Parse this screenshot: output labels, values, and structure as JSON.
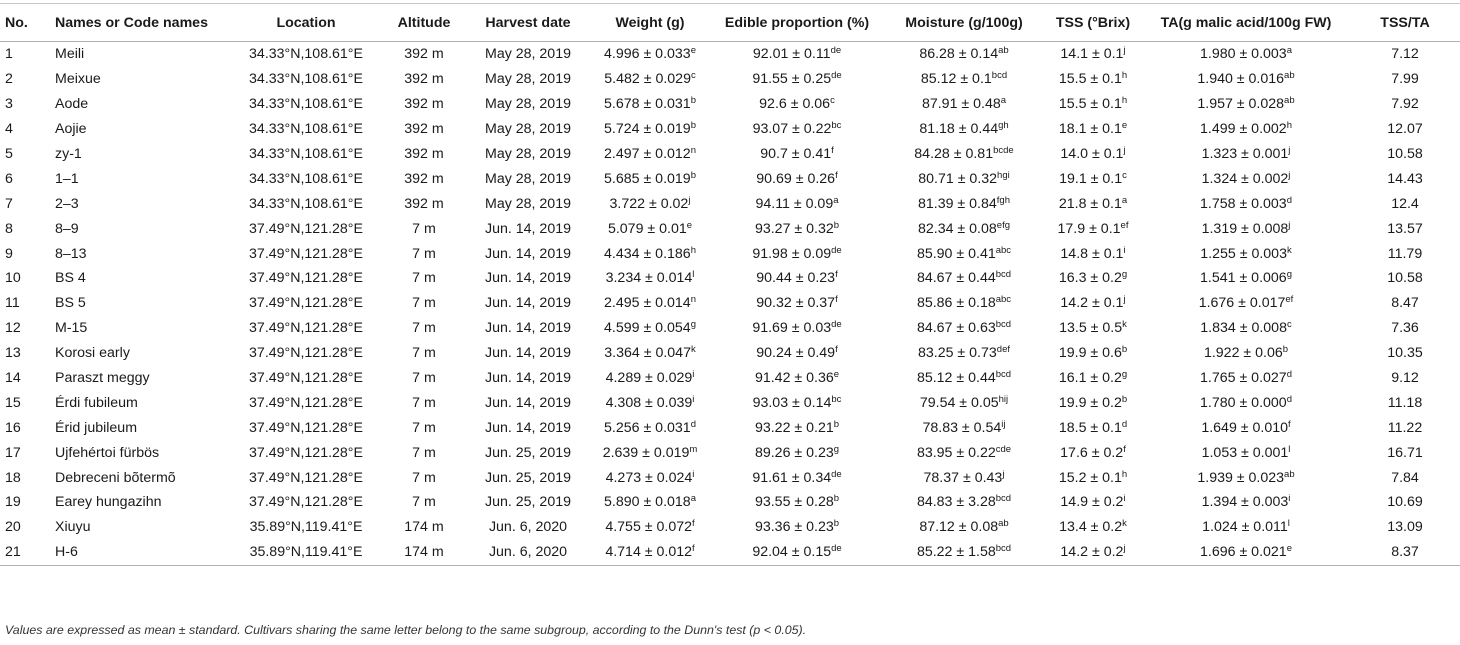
{
  "table": {
    "headers": [
      "No.",
      "Names or Code names",
      "Location",
      "Altitude",
      "Harvest date",
      "Weight (g)",
      "Edible proportion (%)",
      "Moisture (g/100g)",
      "TSS (°Brix)",
      "TA(g malic acid/100g FW)",
      "TSS/TA"
    ],
    "rows": [
      {
        "no": "1",
        "name": "Meili",
        "location": "34.33°N,108.61°E",
        "altitude": "392 m",
        "date": "May 28, 2019",
        "weight": {
          "v": "4.996 ± 0.033",
          "s": "e"
        },
        "edible": {
          "v": "92.01 ± 0.11",
          "s": "de"
        },
        "moisture": {
          "v": "86.28 ± 0.14",
          "s": "ab"
        },
        "tss": {
          "v": "14.1 ± 0.1",
          "s": "j"
        },
        "ta": {
          "v": "1.980 ± 0.003",
          "s": "a"
        },
        "ratio": "7.12"
      },
      {
        "no": "2",
        "name": "Meixue",
        "location": "34.33°N,108.61°E",
        "altitude": "392 m",
        "date": "May 28, 2019",
        "weight": {
          "v": "5.482 ± 0.029",
          "s": "c"
        },
        "edible": {
          "v": "91.55 ± 0.25",
          "s": "de"
        },
        "moisture": {
          "v": "85.12 ± 0.1",
          "s": "bcd"
        },
        "tss": {
          "v": "15.5 ± 0.1",
          "s": "h"
        },
        "ta": {
          "v": "1.940 ± 0.016",
          "s": "ab"
        },
        "ratio": "7.99"
      },
      {
        "no": "3",
        "name": "Aode",
        "location": "34.33°N,108.61°E",
        "altitude": "392 m",
        "date": "May 28, 2019",
        "weight": {
          "v": "5.678 ± 0.031",
          "s": "b"
        },
        "edible": {
          "v": "92.6 ± 0.06",
          "s": "c"
        },
        "moisture": {
          "v": "87.91 ± 0.48",
          "s": "a"
        },
        "tss": {
          "v": "15.5 ± 0.1",
          "s": "h"
        },
        "ta": {
          "v": "1.957 ± 0.028",
          "s": "ab"
        },
        "ratio": "7.92"
      },
      {
        "no": "4",
        "name": "Aojie",
        "location": "34.33°N,108.61°E",
        "altitude": "392 m",
        "date": "May 28, 2019",
        "weight": {
          "v": "5.724 ± 0.019",
          "s": "b"
        },
        "edible": {
          "v": "93.07 ± 0.22",
          "s": "bc"
        },
        "moisture": {
          "v": "81.18 ± 0.44",
          "s": "gh"
        },
        "tss": {
          "v": "18.1 ± 0.1",
          "s": "e"
        },
        "ta": {
          "v": "1.499 ± 0.002",
          "s": "h"
        },
        "ratio": "12.07"
      },
      {
        "no": "5",
        "name": "zy-1",
        "location": "34.33°N,108.61°E",
        "altitude": "392 m",
        "date": "May 28, 2019",
        "weight": {
          "v": "2.497 ± 0.012",
          "s": "n"
        },
        "edible": {
          "v": "90.7 ± 0.41",
          "s": "f"
        },
        "moisture": {
          "v": "84.28 ± 0.81",
          "s": "bcde"
        },
        "tss": {
          "v": "14.0 ± 0.1",
          "s": "j"
        },
        "ta": {
          "v": "1.323 ± 0.001",
          "s": "j"
        },
        "ratio": "10.58"
      },
      {
        "no": "6",
        "name": "1–1",
        "location": "34.33°N,108.61°E",
        "altitude": "392 m",
        "date": "May 28, 2019",
        "weight": {
          "v": "5.685 ± 0.019",
          "s": "b"
        },
        "edible": {
          "v": "90.69 ± 0.26",
          "s": "f"
        },
        "moisture": {
          "v": "80.71 ± 0.32",
          "s": "hgi"
        },
        "tss": {
          "v": "19.1 ± 0.1",
          "s": "c"
        },
        "ta": {
          "v": "1.324 ± 0.002",
          "s": "j"
        },
        "ratio": "14.43"
      },
      {
        "no": "7",
        "name": "2–3",
        "location": "34.33°N,108.61°E",
        "altitude": "392 m",
        "date": "May 28, 2019",
        "weight": {
          "v": "3.722 ± 0.02",
          "s": "j"
        },
        "edible": {
          "v": "94.11 ± 0.09",
          "s": "a"
        },
        "moisture": {
          "v": "81.39 ± 0.84",
          "s": "fgh"
        },
        "tss": {
          "v": "21.8 ± 0.1",
          "s": "a"
        },
        "ta": {
          "v": "1.758 ± 0.003",
          "s": "d"
        },
        "ratio": "12.4"
      },
      {
        "no": "8",
        "name": "8–9",
        "location": "37.49°N,121.28°E",
        "altitude": "7 m",
        "date": "Jun. 14, 2019",
        "weight": {
          "v": "5.079 ± 0.01",
          "s": "e"
        },
        "edible": {
          "v": "93.27 ± 0.32",
          "s": "b"
        },
        "moisture": {
          "v": "82.34 ± 0.08",
          "s": "efg"
        },
        "tss": {
          "v": "17.9 ± 0.1",
          "s": "ef"
        },
        "ta": {
          "v": "1.319 ± 0.008",
          "s": "j"
        },
        "ratio": "13.57"
      },
      {
        "no": "9",
        "name": "8–13",
        "location": "37.49°N,121.28°E",
        "altitude": "7 m",
        "date": "Jun. 14, 2019",
        "weight": {
          "v": "4.434 ± 0.186",
          "s": "h"
        },
        "edible": {
          "v": "91.98 ± 0.09",
          "s": "de"
        },
        "moisture": {
          "v": "85.90 ± 0.41",
          "s": "abc"
        },
        "tss": {
          "v": "14.8 ± 0.1",
          "s": "i"
        },
        "ta": {
          "v": "1.255 ± 0.003",
          "s": "k"
        },
        "ratio": "11.79"
      },
      {
        "no": "10",
        "name": "BS 4",
        "location": "37.49°N,121.28°E",
        "altitude": "7 m",
        "date": "Jun. 14, 2019",
        "weight": {
          "v": "3.234 ± 0.014",
          "s": "l"
        },
        "edible": {
          "v": "90.44 ± 0.23",
          "s": "f"
        },
        "moisture": {
          "v": "84.67 ± 0.44",
          "s": "bcd"
        },
        "tss": {
          "v": "16.3 ± 0.2",
          "s": "g"
        },
        "ta": {
          "v": "1.541 ± 0.006",
          "s": "g"
        },
        "ratio": "10.58"
      },
      {
        "no": "11",
        "name": "BS 5",
        "location": "37.49°N,121.28°E",
        "altitude": "7 m",
        "date": "Jun. 14, 2019",
        "weight": {
          "v": "2.495 ± 0.014",
          "s": "n"
        },
        "edible": {
          "v": "90.32 ± 0.37",
          "s": "f"
        },
        "moisture": {
          "v": "85.86 ± 0.18",
          "s": "abc"
        },
        "tss": {
          "v": "14.2 ± 0.1",
          "s": "j"
        },
        "ta": {
          "v": "1.676 ± 0.017",
          "s": "ef"
        },
        "ratio": "8.47"
      },
      {
        "no": "12",
        "name": "M-15",
        "location": "37.49°N,121.28°E",
        "altitude": "7 m",
        "date": "Jun. 14, 2019",
        "weight": {
          "v": "4.599 ± 0.054",
          "s": "g"
        },
        "edible": {
          "v": "91.69 ± 0.03",
          "s": "de"
        },
        "moisture": {
          "v": "84.67 ± 0.63",
          "s": "bcd"
        },
        "tss": {
          "v": "13.5 ± 0.5",
          "s": "k"
        },
        "ta": {
          "v": "1.834 ± 0.008",
          "s": "c"
        },
        "ratio": "7.36"
      },
      {
        "no": "13",
        "name": "Korosi early",
        "location": "37.49°N,121.28°E",
        "altitude": "7 m",
        "date": "Jun. 14, 2019",
        "weight": {
          "v": "3.364 ± 0.047",
          "s": "k"
        },
        "edible": {
          "v": "90.24 ± 0.49",
          "s": "f"
        },
        "moisture": {
          "v": "83.25 ± 0.73",
          "s": "def"
        },
        "tss": {
          "v": "19.9 ± 0.6",
          "s": "b"
        },
        "ta": {
          "v": "1.922 ± 0.06",
          "s": "b"
        },
        "ratio": "10.35"
      },
      {
        "no": "14",
        "name": "Paraszt meggy",
        "location": "37.49°N,121.28°E",
        "altitude": "7 m",
        "date": "Jun. 14, 2019",
        "weight": {
          "v": "4.289 ± 0.029",
          "s": "i"
        },
        "edible": {
          "v": "91.42 ± 0.36",
          "s": "e"
        },
        "moisture": {
          "v": "85.12 ± 0.44",
          "s": "bcd"
        },
        "tss": {
          "v": "16.1 ± 0.2",
          "s": "g"
        },
        "ta": {
          "v": "1.765 ± 0.027",
          "s": "d"
        },
        "ratio": "9.12"
      },
      {
        "no": "15",
        "name": "Érdi fubileum",
        "location": "37.49°N,121.28°E",
        "altitude": "7 m",
        "date": "Jun. 14, 2019",
        "weight": {
          "v": "4.308 ± 0.039",
          "s": "i"
        },
        "edible": {
          "v": "93.03 ± 0.14",
          "s": "bc"
        },
        "moisture": {
          "v": "79.54 ± 0.05",
          "s": "hij"
        },
        "tss": {
          "v": "19.9 ± 0.2",
          "s": "b"
        },
        "ta": {
          "v": "1.780 ± 0.000",
          "s": "d"
        },
        "ratio": "11.18"
      },
      {
        "no": "16",
        "name": "Érid jubileum",
        "location": "37.49°N,121.28°E",
        "altitude": "7 m",
        "date": "Jun. 14, 2019",
        "weight": {
          "v": "5.256 ± 0.031",
          "s": "d"
        },
        "edible": {
          "v": "93.22 ± 0.21",
          "s": "b"
        },
        "moisture": {
          "v": "78.83 ± 0.54",
          "s": "ij"
        },
        "tss": {
          "v": "18.5 ± 0.1",
          "s": "d"
        },
        "ta": {
          "v": "1.649 ± 0.010",
          "s": "f"
        },
        "ratio": "11.22"
      },
      {
        "no": "17",
        "name": "Ujfehértoi fürbös",
        "location": "37.49°N,121.28°E",
        "altitude": "7 m",
        "date": "Jun. 25, 2019",
        "weight": {
          "v": "2.639 ± 0.019",
          "s": "m"
        },
        "edible": {
          "v": "89.26 ± 0.23",
          "s": "g"
        },
        "moisture": {
          "v": "83.95 ± 0.22",
          "s": "cde"
        },
        "tss": {
          "v": "17.6 ± 0.2",
          "s": "f"
        },
        "ta": {
          "v": "1.053 ± 0.001",
          "s": "l"
        },
        "ratio": "16.71"
      },
      {
        "no": "18",
        "name": "Debreceni bõtermõ",
        "location": "37.49°N,121.28°E",
        "altitude": "7 m",
        "date": "Jun. 25, 2019",
        "weight": {
          "v": "4.273 ± 0.024",
          "s": "i"
        },
        "edible": {
          "v": "91.61 ± 0.34",
          "s": "de"
        },
        "moisture": {
          "v": "78.37 ± 0.43",
          "s": "j"
        },
        "tss": {
          "v": "15.2 ± 0.1",
          "s": "h"
        },
        "ta": {
          "v": "1.939 ± 0.023",
          "s": "ab"
        },
        "ratio": "7.84"
      },
      {
        "no": "19",
        "name": "Earey hungazihn",
        "location": "37.49°N,121.28°E",
        "altitude": "7 m",
        "date": "Jun. 25, 2019",
        "weight": {
          "v": "5.890 ± 0.018",
          "s": "a"
        },
        "edible": {
          "v": "93.55 ± 0.28",
          "s": "b"
        },
        "moisture": {
          "v": "84.83 ± 3.28",
          "s": "bcd"
        },
        "tss": {
          "v": "14.9 ± 0.2",
          "s": "i"
        },
        "ta": {
          "v": "1.394 ± 0.003",
          "s": "i"
        },
        "ratio": "10.69"
      },
      {
        "no": "20",
        "name": "Xiuyu",
        "location": "35.89°N,119.41°E",
        "altitude": "174 m",
        "date": "Jun. 6, 2020",
        "weight": {
          "v": "4.755 ± 0.072",
          "s": "f"
        },
        "edible": {
          "v": "93.36 ± 0.23",
          "s": "b"
        },
        "moisture": {
          "v": "87.12 ± 0.08",
          "s": "ab"
        },
        "tss": {
          "v": "13.4 ± 0.2",
          "s": "k"
        },
        "ta": {
          "v": "1.024 ± 0.011",
          "s": "l"
        },
        "ratio": "13.09"
      },
      {
        "no": "21",
        "name": "H-6",
        "location": "35.89°N,119.41°E",
        "altitude": "174 m",
        "date": "Jun. 6, 2020",
        "weight": {
          "v": "4.714 ± 0.012",
          "s": "f"
        },
        "edible": {
          "v": "92.04 ± 0.15",
          "s": "de"
        },
        "moisture": {
          "v": "85.22 ± 1.58",
          "s": "bcd"
        },
        "tss": {
          "v": "14.2 ± 0.2",
          "s": "j"
        },
        "ta": {
          "v": "1.696 ± 0.021",
          "s": "e"
        },
        "ratio": "8.37"
      }
    ]
  },
  "footnote": "Values are expressed as mean ± standard. Cultivars sharing the same letter belong to the same subgroup, according to the Dunn's test (p < 0.05)."
}
